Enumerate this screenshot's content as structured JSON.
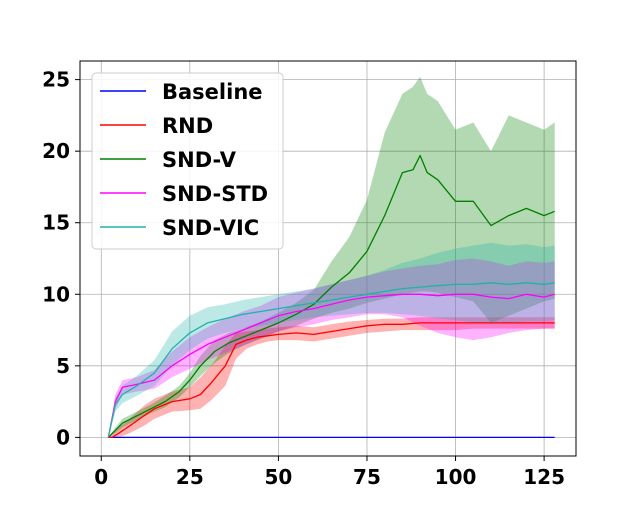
{
  "chart_data": {
    "type": "line",
    "title": "",
    "xlabel": "",
    "ylabel": "",
    "xlim": [
      -6,
      134
    ],
    "ylim": [
      -1.3,
      26.3
    ],
    "xticks": [
      0,
      25,
      50,
      75,
      100,
      125
    ],
    "yticks": [
      0,
      5,
      10,
      15,
      20,
      25
    ],
    "grid": true,
    "legend_position": "upper-left",
    "series": [
      {
        "name": "Baseline",
        "color": "#0000ff",
        "x": [
          2,
          128
        ],
        "y": [
          0,
          0
        ]
      },
      {
        "name": "RND",
        "color": "#ff0000",
        "x": [
          2,
          3,
          5,
          8,
          12,
          15,
          18,
          20,
          25,
          28,
          31,
          35,
          38,
          41,
          44,
          47,
          50,
          55,
          60,
          65,
          70,
          75,
          80,
          85,
          90,
          95,
          100,
          105,
          110,
          115,
          120,
          125,
          128
        ],
        "y": [
          0,
          0,
          0.3,
          0.8,
          1.5,
          2.0,
          2.3,
          2.5,
          2.7,
          3.0,
          3.8,
          5.0,
          6.5,
          6.8,
          7.0,
          7.1,
          7.2,
          7.3,
          7.2,
          7.4,
          7.6,
          7.8,
          7.9,
          7.9,
          8.0,
          8.0,
          8.0,
          8.0,
          8.0,
          8.0,
          8.0,
          8.0,
          8.0
        ],
        "band_low": [
          0,
          0,
          0,
          0.3,
          0.8,
          1.3,
          1.6,
          1.8,
          1.9,
          2.0,
          2.6,
          3.6,
          5.5,
          6.2,
          6.5,
          6.7,
          6.8,
          6.8,
          6.7,
          6.9,
          7.1,
          7.3,
          7.4,
          7.5,
          7.5,
          7.5,
          7.5,
          7.6,
          7.6,
          7.6,
          7.6,
          7.6,
          7.6
        ],
        "band_high": [
          0,
          0.2,
          0.7,
          1.3,
          2.2,
          2.7,
          3.0,
          3.2,
          3.5,
          4.2,
          5.0,
          6.4,
          7.3,
          7.4,
          7.5,
          7.6,
          7.7,
          7.8,
          7.7,
          7.9,
          8.1,
          8.2,
          8.3,
          8.3,
          8.4,
          8.4,
          8.4,
          8.4,
          8.4,
          8.4,
          8.4,
          8.4,
          8.4
        ]
      },
      {
        "name": "SND-V",
        "color": "#008000",
        "x": [
          2,
          4,
          6,
          10,
          14,
          18,
          22,
          25,
          28,
          32,
          36,
          40,
          45,
          50,
          55,
          60,
          65,
          70,
          75,
          80,
          85,
          88,
          90,
          92,
          95,
          100,
          105,
          110,
          115,
          120,
          125,
          128
        ],
        "y": [
          0,
          0.5,
          1.0,
          1.5,
          2.0,
          2.5,
          3.2,
          4.0,
          5.0,
          6.0,
          6.6,
          7.0,
          7.5,
          8.0,
          8.6,
          9.3,
          10.5,
          11.5,
          13.0,
          15.5,
          18.5,
          18.7,
          19.7,
          18.5,
          18.0,
          16.5,
          16.5,
          14.8,
          15.5,
          16.0,
          15.5,
          15.8
        ],
        "band_low": [
          0,
          0.3,
          0.7,
          1.2,
          1.7,
          2.1,
          2.8,
          3.5,
          4.3,
          5.2,
          5.9,
          6.4,
          6.9,
          7.4,
          7.8,
          8.3,
          8.7,
          9.0,
          9.4,
          9.7,
          10.0,
          10.1,
          10.2,
          10.2,
          10.1,
          9.8,
          9.5,
          8.0,
          8.5,
          9.0,
          9.5,
          9.7
        ],
        "band_high": [
          0,
          0.7,
          1.3,
          1.8,
          2.3,
          2.9,
          3.6,
          4.5,
          5.7,
          6.8,
          7.3,
          7.6,
          8.1,
          8.7,
          9.4,
          10.3,
          12.3,
          14.0,
          16.6,
          21.3,
          24.0,
          24.5,
          25.2,
          24.0,
          23.5,
          21.5,
          22.0,
          20.0,
          22.5,
          22.0,
          21.5,
          22.0
        ]
      },
      {
        "name": "SND-STD",
        "color": "#ff00ff",
        "x": [
          2,
          4,
          6,
          10,
          15,
          20,
          25,
          30,
          35,
          40,
          45,
          50,
          55,
          60,
          65,
          70,
          75,
          80,
          85,
          90,
          95,
          100,
          105,
          110,
          115,
          120,
          125,
          128
        ],
        "y": [
          0,
          2.5,
          3.5,
          3.7,
          4.0,
          5.0,
          5.8,
          6.5,
          7.0,
          7.5,
          8.0,
          8.5,
          8.8,
          9.0,
          9.3,
          9.6,
          9.8,
          9.9,
          10.0,
          10.0,
          9.9,
          10.0,
          10.0,
          9.8,
          9.7,
          10.0,
          9.8,
          10.0
        ],
        "band_low": [
          0,
          2.0,
          3.0,
          3.2,
          3.4,
          4.2,
          4.8,
          5.4,
          5.9,
          6.4,
          6.9,
          7.4,
          7.7,
          7.9,
          8.2,
          8.4,
          8.6,
          8.6,
          8.4,
          7.8,
          7.3,
          7.0,
          6.8,
          7.0,
          7.3,
          7.5,
          7.6,
          7.6
        ],
        "band_high": [
          0,
          3.0,
          4.0,
          4.2,
          4.7,
          6.0,
          7.0,
          7.7,
          8.3,
          8.8,
          9.2,
          9.8,
          10.1,
          10.4,
          10.7,
          11.0,
          11.3,
          11.6,
          11.8,
          12.0,
          12.1,
          12.4,
          12.5,
          12.3,
          12.0,
          12.3,
          12.2,
          12.3
        ]
      },
      {
        "name": "SND-VIC",
        "color": "#20b2aa",
        "x": [
          2,
          4,
          6,
          10,
          15,
          20,
          25,
          30,
          35,
          40,
          45,
          50,
          55,
          60,
          65,
          70,
          75,
          80,
          85,
          90,
          95,
          100,
          105,
          110,
          115,
          120,
          125,
          128
        ],
        "y": [
          0,
          2.3,
          3.0,
          3.6,
          4.5,
          6.2,
          7.3,
          8.0,
          8.3,
          8.6,
          8.8,
          9.0,
          9.2,
          9.4,
          9.6,
          9.8,
          10.0,
          10.2,
          10.4,
          10.5,
          10.6,
          10.7,
          10.7,
          10.8,
          10.7,
          10.8,
          10.7,
          10.8
        ],
        "band_low": [
          0,
          1.8,
          2.4,
          2.9,
          3.6,
          5.0,
          6.1,
          6.9,
          7.3,
          7.6,
          7.8,
          8.0,
          8.2,
          8.4,
          8.5,
          8.6,
          8.7,
          8.7,
          8.6,
          8.5,
          8.3,
          8.2,
          8.0,
          8.0,
          8.0,
          8.1,
          8.1,
          8.2
        ],
        "band_high": [
          0,
          2.8,
          3.6,
          4.3,
          5.4,
          7.4,
          8.5,
          9.1,
          9.3,
          9.6,
          9.8,
          10.0,
          10.2,
          10.4,
          10.7,
          11.0,
          11.3,
          11.7,
          12.2,
          12.5,
          12.9,
          13.2,
          13.4,
          13.6,
          13.4,
          13.5,
          13.3,
          13.4
        ]
      }
    ]
  }
}
